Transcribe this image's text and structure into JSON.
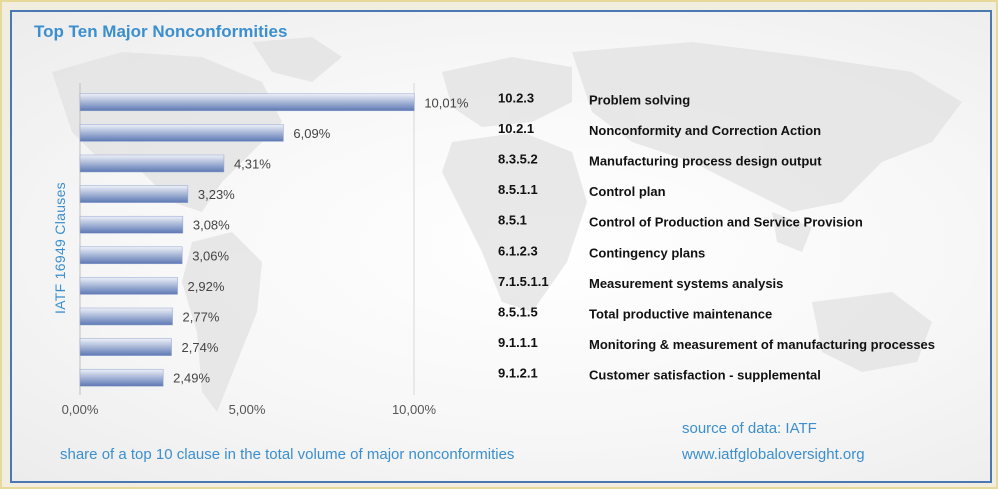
{
  "chart_data": {
    "type": "bar",
    "orientation": "horizontal",
    "title": "Top Ten Major Nonconformities",
    "ylabel": "IATF 16949 Clauses",
    "xlabel": "share of a top 10 clause in the total volume of major nonconformities",
    "xlim": [
      0,
      10
    ],
    "xticks": [
      "0,00%",
      "5,00%",
      "10,00%"
    ],
    "grid": false,
    "bars": [
      {
        "clause": "10.2.3",
        "name": "Problem solving",
        "value": 10.01,
        "label": "10,01%"
      },
      {
        "clause": "10.2.1",
        "name": "Nonconformity and Correction Action",
        "value": 6.09,
        "label": "6,09%"
      },
      {
        "clause": "8.3.5.2",
        "name": "Manufacturing process design output",
        "value": 4.31,
        "label": "4,31%"
      },
      {
        "clause": "8.5.1.1",
        "name": "Control plan",
        "value": 3.23,
        "label": "3,23%"
      },
      {
        "clause": "8.5.1",
        "name": "Control of Production and Service Provision",
        "value": 3.08,
        "label": "3,08%"
      },
      {
        "clause": "6.1.2.3",
        "name": "Contingency plans",
        "value": 3.06,
        "label": "3,06%"
      },
      {
        "clause": "7.1.5.1.1",
        "name": "Measurement systems analysis",
        "value": 2.92,
        "label": "2,92%"
      },
      {
        "clause": "8.5.1.5",
        "name": "Total productive maintenance",
        "value": 2.77,
        "label": "2,77%"
      },
      {
        "clause": "9.1.1.1",
        "name": "Monitoring & measurement of manufacturing processes",
        "value": 2.74,
        "label": "2,74%"
      },
      {
        "clause": "9.1.2.1",
        "name": "Customer satisfaction - supplemental",
        "value": 2.49,
        "label": "2,49%"
      }
    ]
  },
  "source": {
    "line1": "source of data: IATF",
    "line2": "www.iatfglobaloversight.org"
  },
  "colors": {
    "title": "#3b8fcf",
    "bar_dark": "#5d78b4",
    "bar_light": "#eef1f8",
    "border": "#4a78b3"
  }
}
